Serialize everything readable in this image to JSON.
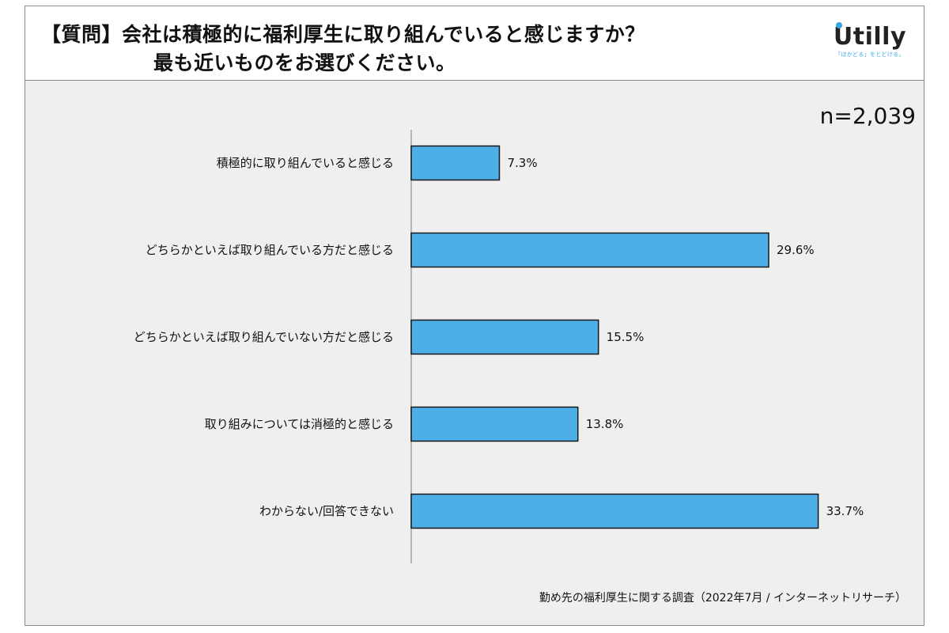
{
  "header": {
    "question_line1": "【質問】会社は積極的に福利厚生に取り組んでいると感じますか？",
    "question_line2": "最も近いものをお選びください。",
    "logo_text": "Utilly",
    "logo_tagline": "「ほかどる」をとどける。"
  },
  "sample_size": "n=2,039",
  "source": "勤め先の福利厚生に関する調査（2022年7月 / インターネットリサーチ）",
  "colors": {
    "bar": "#4eaee8",
    "bar_stroke": "#1a1a1a",
    "plot_bg": "#efefef",
    "logo_accent": "#37a7e6"
  },
  "chart_data": {
    "type": "bar",
    "orientation": "horizontal",
    "categories": [
      "積極的に取り組んでいると感じる",
      "どちらかといえば取り組んでいる方だと感じる",
      "どちらかといえば取り組んでいない方だと感じる",
      "取り組みについては消極的と感じる",
      "わからない/回答できない"
    ],
    "values": [
      7.3,
      29.6,
      15.5,
      13.8,
      33.7
    ],
    "value_labels": [
      "7.3%",
      "29.6%",
      "15.5%",
      "13.8%",
      "33.7%"
    ],
    "unit": "%",
    "xlim": [
      0,
      40
    ],
    "grid": false,
    "legend": "none"
  }
}
